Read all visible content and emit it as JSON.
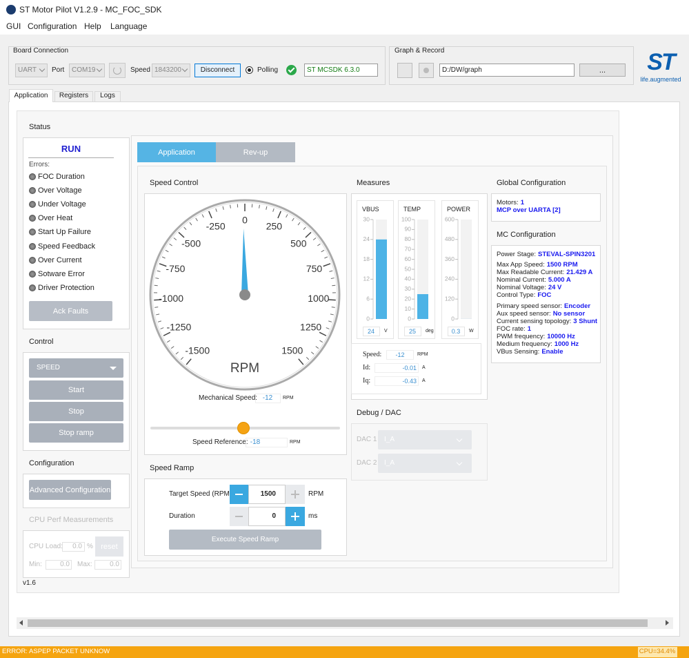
{
  "window": {
    "title": "ST Motor Pilot V1.2.9 - MC_FOC_SDK"
  },
  "menu": [
    "GUI",
    "Configuration",
    "Help",
    "Language"
  ],
  "board_connection": {
    "title": "Board Connection",
    "interface": "UART",
    "port_label": "Port",
    "port": "COM19",
    "speed_label": "Speed",
    "speed": "1843200",
    "disconnect": "Disconnect",
    "polling": "Polling",
    "sdk": "ST MCSDK 6.3.0"
  },
  "graph_record": {
    "title": "Graph & Record",
    "path": "D:/DW/graph",
    "browse": "..."
  },
  "logo": {
    "mark": "ST",
    "tagline": "life.augmented"
  },
  "tabs": [
    "Application",
    "Registers",
    "Logs"
  ],
  "status": {
    "title": "Status",
    "state": "RUN",
    "errors_label": "Errors:",
    "errors": [
      "FOC Duration",
      "Over Voltage",
      "Under Voltage",
      "Over Heat",
      "Start Up Failure",
      "Speed Feedback",
      "Over Current",
      "Sotware Error",
      "Driver Protection"
    ],
    "ack": "Ack Faults"
  },
  "control": {
    "title": "Control",
    "mode": "SPEED",
    "buttons": [
      "Start",
      "Stop",
      "Stop ramp"
    ]
  },
  "configuration": {
    "title": "Configuration",
    "button": "Advanced Configuration"
  },
  "cpu_perf": {
    "title": "CPU Perf Measurements",
    "load_label": "CPU Load:",
    "load": "0.0",
    "unit": "%",
    "reset": "reset",
    "min_label": "Min:",
    "min": "0.0",
    "max_label": "Max:",
    "max": "0.0"
  },
  "version": "v1.6",
  "subtabs": [
    "Application",
    "Rev-up"
  ],
  "speed_control": {
    "title": "Speed Control",
    "gauge": {
      "unit": "RPM",
      "ticks": [
        -1500,
        -1250,
        -1000,
        -750,
        -500,
        -250,
        0,
        250,
        500,
        750,
        1000,
        1250,
        1500
      ]
    },
    "mechanical_speed": {
      "label": "Mechanical Speed:",
      "value": -12,
      "unit": "RPM"
    },
    "speed_reference": {
      "label": "Speed Reference:",
      "value": -18,
      "unit": "RPM"
    }
  },
  "speed_ramp": {
    "title": "Speed Ramp",
    "target_label": "Target Speed (RPM)",
    "target": 1500,
    "target_unit": "RPM",
    "duration_label": "Duration",
    "duration": 0,
    "duration_unit": "ms",
    "execute": "Execute Speed Ramp"
  },
  "measures": {
    "title": "Measures",
    "gauges": [
      {
        "name": "VBUS",
        "ticks": [
          0,
          6,
          12,
          18,
          24,
          30
        ],
        "value": 24,
        "unit": "V"
      },
      {
        "name": "TEMP",
        "ticks": [
          0,
          10,
          20,
          30,
          40,
          50,
          60,
          70,
          80,
          90,
          100
        ],
        "value": 25,
        "unit": "deg"
      },
      {
        "name": "POWER",
        "ticks": [
          0,
          120,
          240,
          360,
          480,
          600
        ],
        "value": 0.3,
        "unit": "W"
      }
    ],
    "readings": [
      {
        "label": "Speed:",
        "value": -12,
        "unit": "RPM"
      },
      {
        "label": "Id:",
        "value": -0.01,
        "unit": "A"
      },
      {
        "label": "Iq:",
        "value": -0.43,
        "unit": "A"
      }
    ]
  },
  "debug_dac": {
    "title": "Debug / DAC",
    "channels": [
      {
        "label": "DAC 1",
        "value": "I_A"
      },
      {
        "label": "DAC 2",
        "value": "I_A"
      }
    ]
  },
  "global_configuration": {
    "title": "Global Configuration",
    "motors_label": "Motors:",
    "motors": "1",
    "protocol": "MCP over UARTA [2]"
  },
  "mc_configuration": {
    "title": "MC Configuration",
    "lines": [
      {
        "label": "Power Stage:",
        "value": "STEVAL-SPIN3201"
      },
      {
        "label": "Max App Speed:",
        "value": "1500 RPM"
      },
      {
        "label": "Max Readable Current:",
        "value": "21.429 A"
      },
      {
        "label": "Nominal Current:",
        "value": "5.000 A"
      },
      {
        "label": "Nominal Voltage:",
        "value": "24 V"
      },
      {
        "label": "Control Type:",
        "value": "FOC"
      },
      {
        "label": "Primary speed sensor:",
        "value": "Encoder"
      },
      {
        "label": "Aux speed sensor:",
        "value": "No sensor"
      },
      {
        "label": "Current sensing topology:",
        "value": "3 Shunt"
      },
      {
        "label": "FOC rate:",
        "value": "1"
      },
      {
        "label": "PWM frequency:",
        "value": "10000 Hz"
      },
      {
        "label": "Medium frequency:",
        "value": "1000 Hz"
      },
      {
        "label": "VBus Sensing:",
        "value": "Enable"
      }
    ]
  },
  "status_bar": {
    "message": "ERROR: ASPEP PACKET UNKNOW",
    "cpu": "CPU=34.4%"
  }
}
